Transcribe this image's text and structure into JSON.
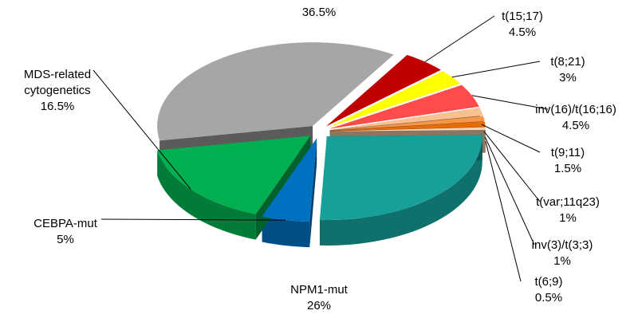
{
  "chart_data": {
    "type": "pie3d",
    "categories": [
      null,
      "t(15;17)",
      "t(8;21)",
      "inv(16)/t(16;16)",
      "t(9;11)",
      "t(var;11q23)",
      "inv(3)/t(3;3)",
      "t(6;9)",
      "NPM1-mut",
      "CEBPA-mut",
      "MDS-related cytogenetics"
    ],
    "values": [
      36.5,
      4.5,
      3,
      4.5,
      1.5,
      1,
      1,
      0.5,
      26,
      5,
      16.5
    ],
    "value_labels": [
      "36.5%",
      "4.5%",
      "3%",
      "4.5%",
      "1.5%",
      "1%",
      "1%",
      "0.5%",
      "26%",
      "5%",
      "16.5%"
    ],
    "colors": [
      "#a6a6a6",
      "#c00000",
      "#ffff00",
      "#ff4b4b",
      "#fac090",
      "#f79646",
      "#e46c0a",
      "#fcd5b4",
      "#17a09a",
      "#0070c0",
      "#00b050"
    ]
  }
}
